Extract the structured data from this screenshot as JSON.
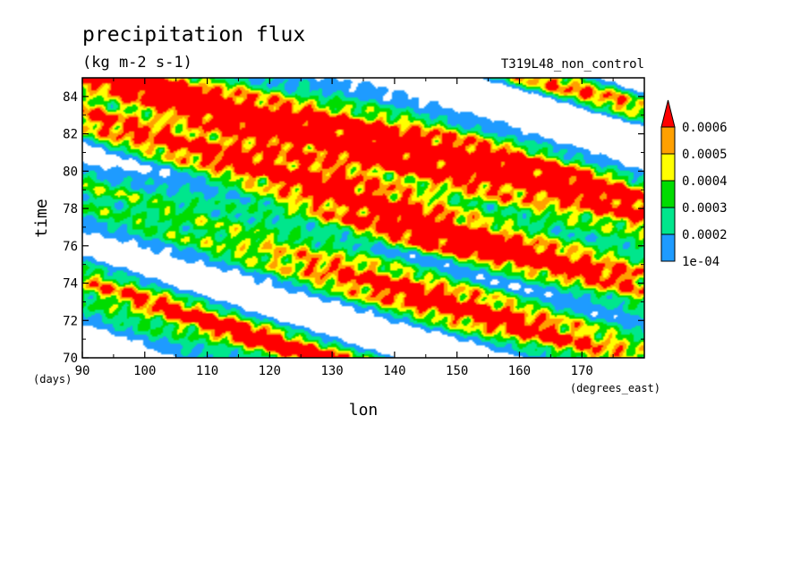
{
  "chart_data": {
    "type": "heatmap",
    "title": "precipitation flux",
    "units": "(kg m-2 s-1)",
    "run_label": "T319L48_non_control",
    "xlabel": "lon",
    "x_units": "(degrees_east)",
    "ylabel": "time",
    "y_units": "(days)",
    "xlim": [
      90,
      180
    ],
    "ylim": [
      70,
      85
    ],
    "xticks": [
      90,
      100,
      110,
      120,
      130,
      140,
      150,
      160,
      170
    ],
    "yticks": [
      70,
      72,
      74,
      76,
      78,
      80,
      82,
      84
    ],
    "colorbar": {
      "labels": [
        "1e-04",
        "0.0002",
        "0.0003",
        "0.0004",
        "0.0005",
        "0.0006"
      ],
      "colors": [
        "#1e9bff",
        "#00e68c",
        "#00dc00",
        "#ffff00",
        "#ffa000",
        "#ff0000"
      ],
      "extend": "max"
    },
    "bands": [
      {
        "lon": 90,
        "time": 82.6,
        "slope": -0.11,
        "width": 0.9,
        "amp": 0.00045
      },
      {
        "lon": 100,
        "time": 84.2,
        "slope": -0.11,
        "width": 0.7,
        "amp": 0.0004
      },
      {
        "lon": 120,
        "time": 82.6,
        "slope": -0.1,
        "width": 0.8,
        "amp": 0.0007
      },
      {
        "lon": 130,
        "time": 79.3,
        "slope": -0.11,
        "width": 1.2,
        "amp": 0.00075
      },
      {
        "lon": 150,
        "time": 80.8,
        "slope": -0.09,
        "width": 1.1,
        "amp": 0.0008
      },
      {
        "lon": 165,
        "time": 84.8,
        "slope": -0.1,
        "width": 0.7,
        "amp": 0.00065
      },
      {
        "lon": 155,
        "time": 75.8,
        "slope": -0.06,
        "width": 0.9,
        "amp": 0.00048
      },
      {
        "lon": 150,
        "time": 72.7,
        "slope": -0.09,
        "width": 1.2,
        "amp": 0.0008
      },
      {
        "lon": 125,
        "time": 70.3,
        "slope": -0.1,
        "width": 0.9,
        "amp": 0.0007
      },
      {
        "lon": 100,
        "time": 73.5,
        "slope": -0.12,
        "width": 0.8,
        "amp": 0.00025
      },
      {
        "lon": 100,
        "time": 71.3,
        "slope": -0.12,
        "width": 0.7,
        "amp": 0.00022
      },
      {
        "lon": 125,
        "time": 76.2,
        "slope": -0.09,
        "width": 0.5,
        "amp": 0.00018
      },
      {
        "lon": 175,
        "time": 79.0,
        "slope": -0.12,
        "width": 1.4,
        "amp": 0.0003
      }
    ]
  }
}
